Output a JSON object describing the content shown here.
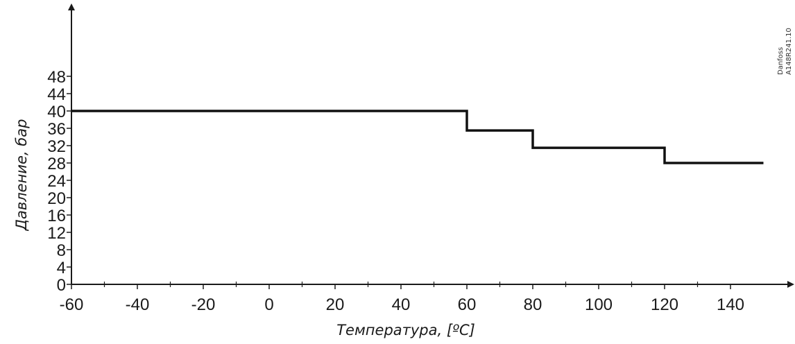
{
  "chart_data": {
    "type": "line",
    "step": true,
    "xlabel": "Температура, [ºC]",
    "ylabel": "Давление, бар",
    "xlim": [
      -60,
      150
    ],
    "ylim": [
      0,
      50
    ],
    "x_ticks": [
      -60,
      -40,
      -20,
      0,
      20,
      40,
      60,
      80,
      100,
      120,
      140
    ],
    "x_tick_labels": [
      "-60",
      "-40",
      "-20",
      "0",
      "20",
      "40",
      "60",
      "80",
      "100",
      "120",
      "140"
    ],
    "y_ticks": [
      0,
      4,
      8,
      12,
      16,
      20,
      24,
      28,
      32,
      36,
      40,
      44,
      48
    ],
    "y_tick_labels": [
      "0",
      "4",
      "8",
      "12",
      "16",
      "20",
      "24",
      "28",
      "32",
      "36",
      "40",
      "44",
      "48"
    ],
    "series": [
      {
        "points": [
          [
            -60,
            40
          ],
          [
            60,
            40
          ],
          [
            60,
            35.5
          ],
          [
            80,
            35.5
          ],
          [
            80,
            31.5
          ],
          [
            120,
            31.5
          ],
          [
            120,
            28
          ],
          [
            150,
            28
          ]
        ]
      }
    ],
    "grid": false,
    "colors": {
      "line": "#111111",
      "axis": "#1a1a1a"
    },
    "watermark": [
      "Danfoss",
      "A148R241.10"
    ]
  }
}
